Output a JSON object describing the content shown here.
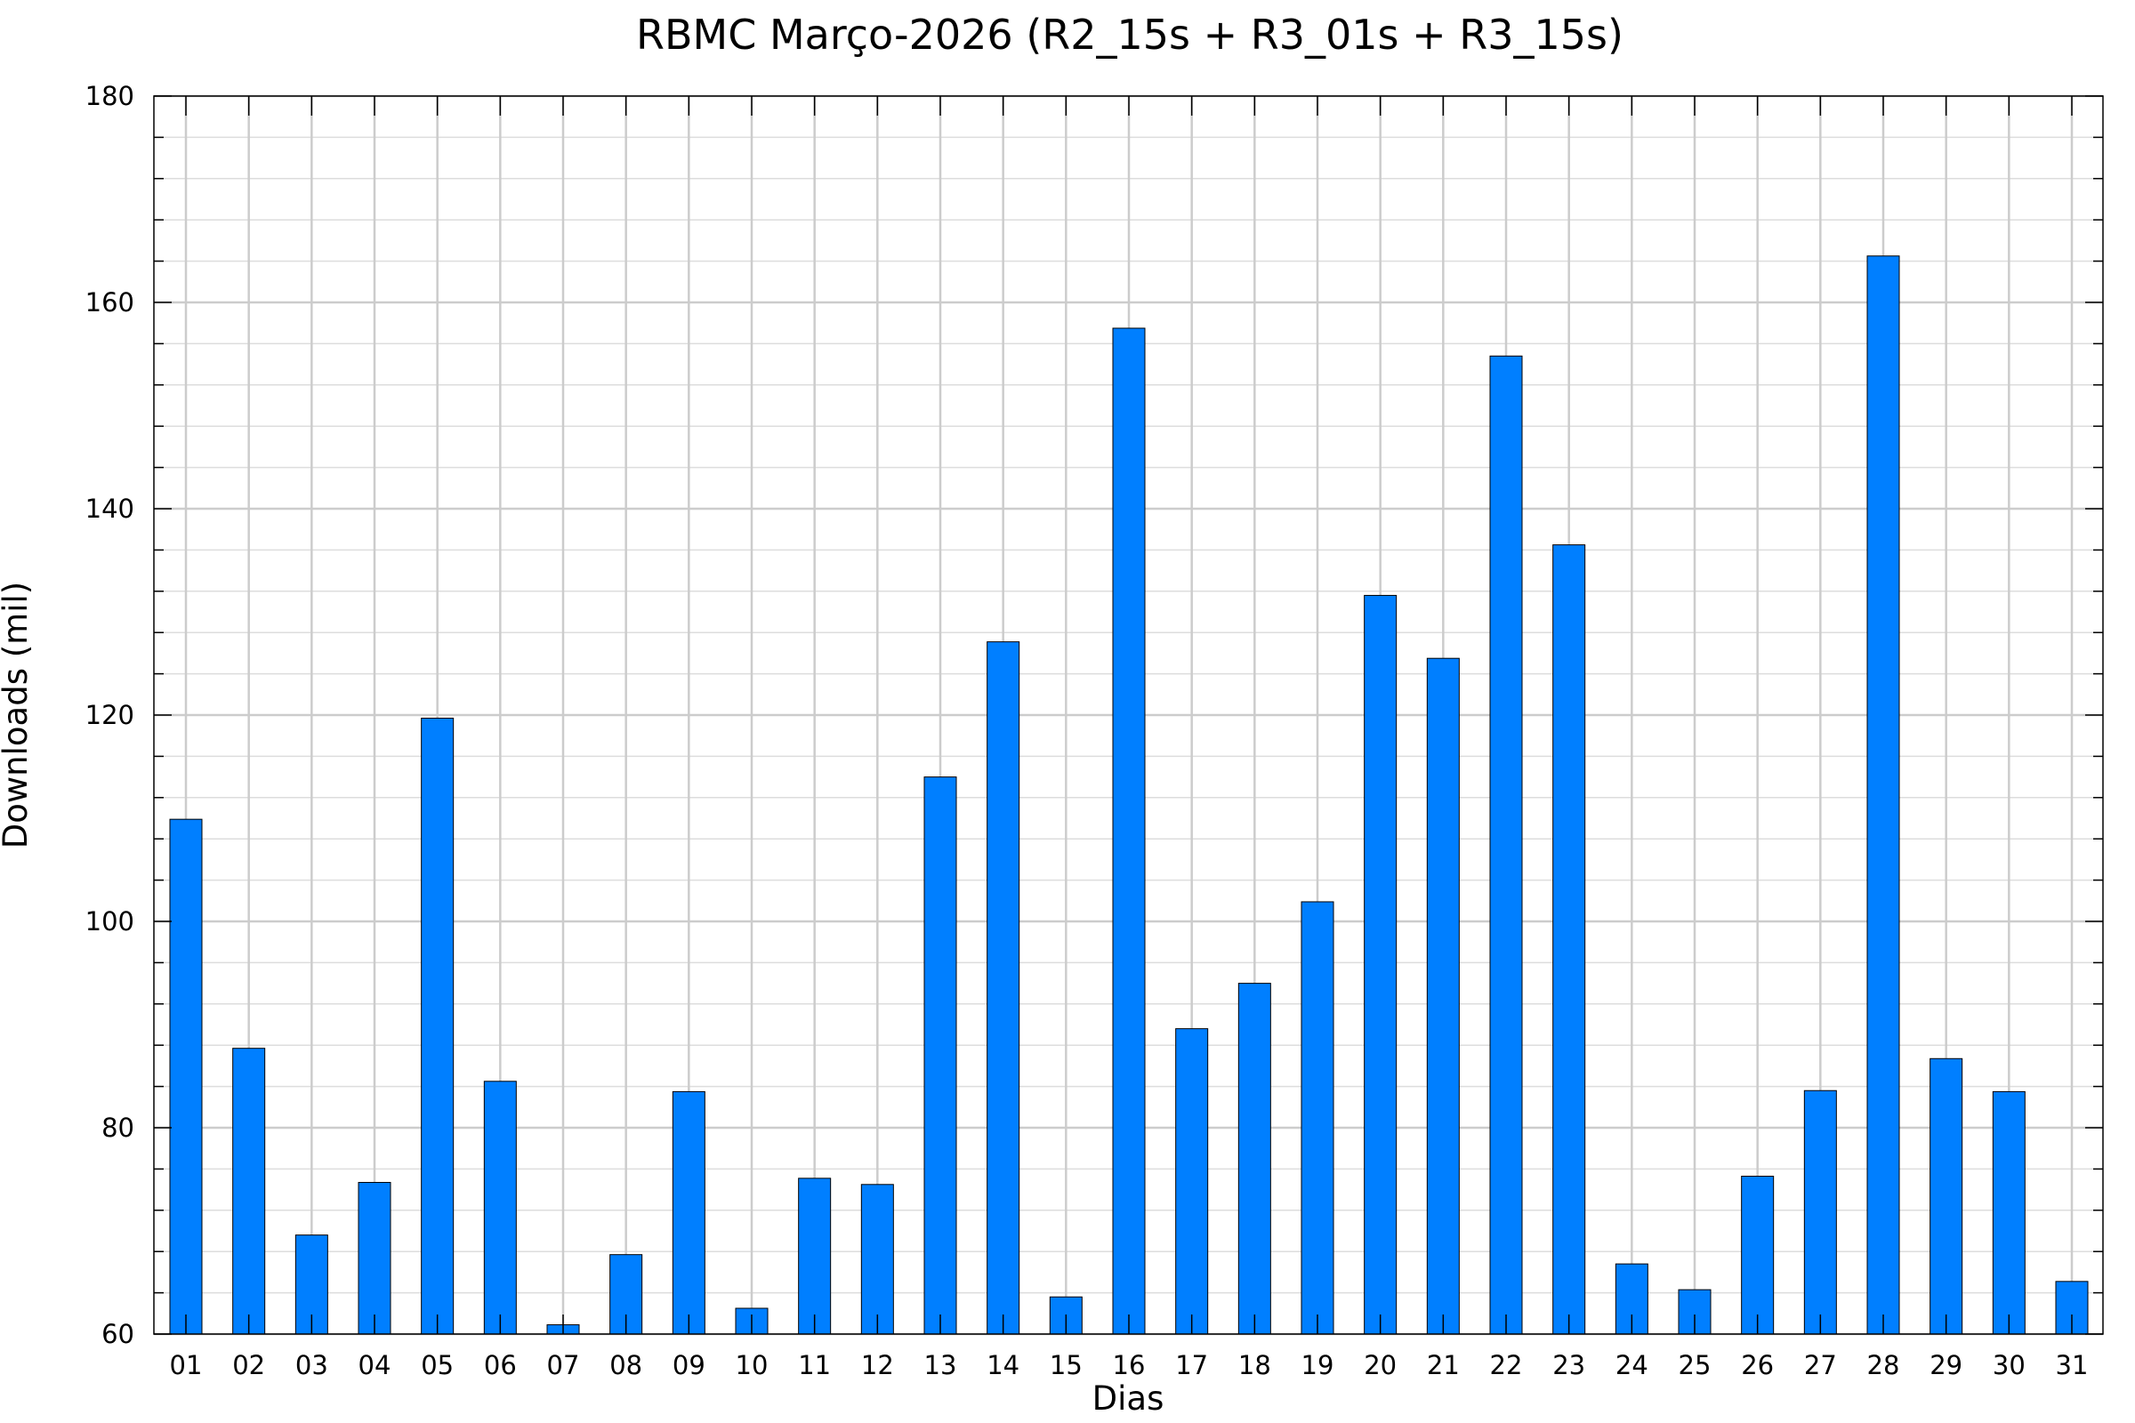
{
  "chart_data": {
    "type": "bar",
    "title": "RBMC Março-2026 (R2_15s + R3_01s + R3_15s)",
    "xlabel": "Dias",
    "ylabel": "Downloads (mil)",
    "ylim": [
      60,
      180
    ],
    "yticks": [
      60,
      80,
      100,
      120,
      140,
      160,
      180
    ],
    "ytick_labels": [
      "60",
      "80",
      "100",
      "120",
      "140",
      "160",
      "180"
    ],
    "grid": true,
    "categories": [
      "01",
      "02",
      "03",
      "04",
      "05",
      "06",
      "07",
      "08",
      "09",
      "10",
      "11",
      "12",
      "13",
      "14",
      "15",
      "16",
      "17",
      "18",
      "19",
      "20",
      "21",
      "22",
      "23",
      "24",
      "25",
      "26",
      "27",
      "28",
      "29",
      "30",
      "31"
    ],
    "values": [
      109.9,
      87.7,
      69.6,
      74.7,
      119.7,
      84.5,
      60.9,
      67.7,
      83.5,
      62.5,
      75.1,
      74.5,
      114.0,
      127.1,
      63.6,
      157.5,
      89.6,
      94.0,
      101.9,
      131.6,
      125.5,
      154.8,
      136.5,
      66.8,
      64.3,
      75.3,
      83.6,
      164.5,
      86.7,
      83.5,
      65.1
    ],
    "bar_color": "#007fff"
  }
}
